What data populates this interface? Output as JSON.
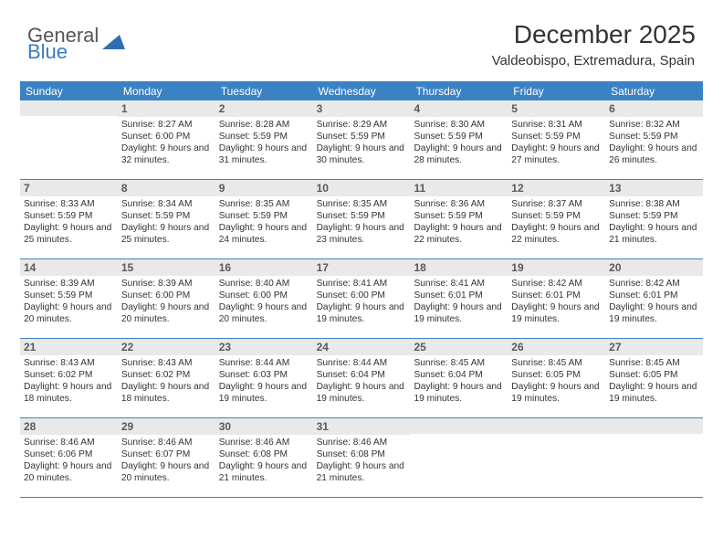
{
  "brand": {
    "general": "General",
    "blue": "Blue"
  },
  "title": "December 2025",
  "location": "Valdeobispo, Extremadura, Spain",
  "colors": {
    "header_bar": "#3b82c4",
    "daynum_bg": "#e9e9ea",
    "text": "#333333",
    "brand_blue": "#3b7bbf"
  },
  "dow": [
    "Sunday",
    "Monday",
    "Tuesday",
    "Wednesday",
    "Thursday",
    "Friday",
    "Saturday"
  ],
  "weeks": [
    [
      {
        "n": "",
        "sr": "",
        "ss": "",
        "dl": ""
      },
      {
        "n": "1",
        "sr": "Sunrise: 8:27 AM",
        "ss": "Sunset: 6:00 PM",
        "dl": "Daylight: 9 hours and 32 minutes."
      },
      {
        "n": "2",
        "sr": "Sunrise: 8:28 AM",
        "ss": "Sunset: 5:59 PM",
        "dl": "Daylight: 9 hours and 31 minutes."
      },
      {
        "n": "3",
        "sr": "Sunrise: 8:29 AM",
        "ss": "Sunset: 5:59 PM",
        "dl": "Daylight: 9 hours and 30 minutes."
      },
      {
        "n": "4",
        "sr": "Sunrise: 8:30 AM",
        "ss": "Sunset: 5:59 PM",
        "dl": "Daylight: 9 hours and 28 minutes."
      },
      {
        "n": "5",
        "sr": "Sunrise: 8:31 AM",
        "ss": "Sunset: 5:59 PM",
        "dl": "Daylight: 9 hours and 27 minutes."
      },
      {
        "n": "6",
        "sr": "Sunrise: 8:32 AM",
        "ss": "Sunset: 5:59 PM",
        "dl": "Daylight: 9 hours and 26 minutes."
      }
    ],
    [
      {
        "n": "7",
        "sr": "Sunrise: 8:33 AM",
        "ss": "Sunset: 5:59 PM",
        "dl": "Daylight: 9 hours and 25 minutes."
      },
      {
        "n": "8",
        "sr": "Sunrise: 8:34 AM",
        "ss": "Sunset: 5:59 PM",
        "dl": "Daylight: 9 hours and 25 minutes."
      },
      {
        "n": "9",
        "sr": "Sunrise: 8:35 AM",
        "ss": "Sunset: 5:59 PM",
        "dl": "Daylight: 9 hours and 24 minutes."
      },
      {
        "n": "10",
        "sr": "Sunrise: 8:35 AM",
        "ss": "Sunset: 5:59 PM",
        "dl": "Daylight: 9 hours and 23 minutes."
      },
      {
        "n": "11",
        "sr": "Sunrise: 8:36 AM",
        "ss": "Sunset: 5:59 PM",
        "dl": "Daylight: 9 hours and 22 minutes."
      },
      {
        "n": "12",
        "sr": "Sunrise: 8:37 AM",
        "ss": "Sunset: 5:59 PM",
        "dl": "Daylight: 9 hours and 22 minutes."
      },
      {
        "n": "13",
        "sr": "Sunrise: 8:38 AM",
        "ss": "Sunset: 5:59 PM",
        "dl": "Daylight: 9 hours and 21 minutes."
      }
    ],
    [
      {
        "n": "14",
        "sr": "Sunrise: 8:39 AM",
        "ss": "Sunset: 5:59 PM",
        "dl": "Daylight: 9 hours and 20 minutes."
      },
      {
        "n": "15",
        "sr": "Sunrise: 8:39 AM",
        "ss": "Sunset: 6:00 PM",
        "dl": "Daylight: 9 hours and 20 minutes."
      },
      {
        "n": "16",
        "sr": "Sunrise: 8:40 AM",
        "ss": "Sunset: 6:00 PM",
        "dl": "Daylight: 9 hours and 20 minutes."
      },
      {
        "n": "17",
        "sr": "Sunrise: 8:41 AM",
        "ss": "Sunset: 6:00 PM",
        "dl": "Daylight: 9 hours and 19 minutes."
      },
      {
        "n": "18",
        "sr": "Sunrise: 8:41 AM",
        "ss": "Sunset: 6:01 PM",
        "dl": "Daylight: 9 hours and 19 minutes."
      },
      {
        "n": "19",
        "sr": "Sunrise: 8:42 AM",
        "ss": "Sunset: 6:01 PM",
        "dl": "Daylight: 9 hours and 19 minutes."
      },
      {
        "n": "20",
        "sr": "Sunrise: 8:42 AM",
        "ss": "Sunset: 6:01 PM",
        "dl": "Daylight: 9 hours and 19 minutes."
      }
    ],
    [
      {
        "n": "21",
        "sr": "Sunrise: 8:43 AM",
        "ss": "Sunset: 6:02 PM",
        "dl": "Daylight: 9 hours and 18 minutes."
      },
      {
        "n": "22",
        "sr": "Sunrise: 8:43 AM",
        "ss": "Sunset: 6:02 PM",
        "dl": "Daylight: 9 hours and 18 minutes."
      },
      {
        "n": "23",
        "sr": "Sunrise: 8:44 AM",
        "ss": "Sunset: 6:03 PM",
        "dl": "Daylight: 9 hours and 19 minutes."
      },
      {
        "n": "24",
        "sr": "Sunrise: 8:44 AM",
        "ss": "Sunset: 6:04 PM",
        "dl": "Daylight: 9 hours and 19 minutes."
      },
      {
        "n": "25",
        "sr": "Sunrise: 8:45 AM",
        "ss": "Sunset: 6:04 PM",
        "dl": "Daylight: 9 hours and 19 minutes."
      },
      {
        "n": "26",
        "sr": "Sunrise: 8:45 AM",
        "ss": "Sunset: 6:05 PM",
        "dl": "Daylight: 9 hours and 19 minutes."
      },
      {
        "n": "27",
        "sr": "Sunrise: 8:45 AM",
        "ss": "Sunset: 6:05 PM",
        "dl": "Daylight: 9 hours and 19 minutes."
      }
    ],
    [
      {
        "n": "28",
        "sr": "Sunrise: 8:46 AM",
        "ss": "Sunset: 6:06 PM",
        "dl": "Daylight: 9 hours and 20 minutes."
      },
      {
        "n": "29",
        "sr": "Sunrise: 8:46 AM",
        "ss": "Sunset: 6:07 PM",
        "dl": "Daylight: 9 hours and 20 minutes."
      },
      {
        "n": "30",
        "sr": "Sunrise: 8:46 AM",
        "ss": "Sunset: 6:08 PM",
        "dl": "Daylight: 9 hours and 21 minutes."
      },
      {
        "n": "31",
        "sr": "Sunrise: 8:46 AM",
        "ss": "Sunset: 6:08 PM",
        "dl": "Daylight: 9 hours and 21 minutes."
      },
      {
        "n": "",
        "sr": "",
        "ss": "",
        "dl": ""
      },
      {
        "n": "",
        "sr": "",
        "ss": "",
        "dl": ""
      },
      {
        "n": "",
        "sr": "",
        "ss": "",
        "dl": ""
      }
    ]
  ]
}
